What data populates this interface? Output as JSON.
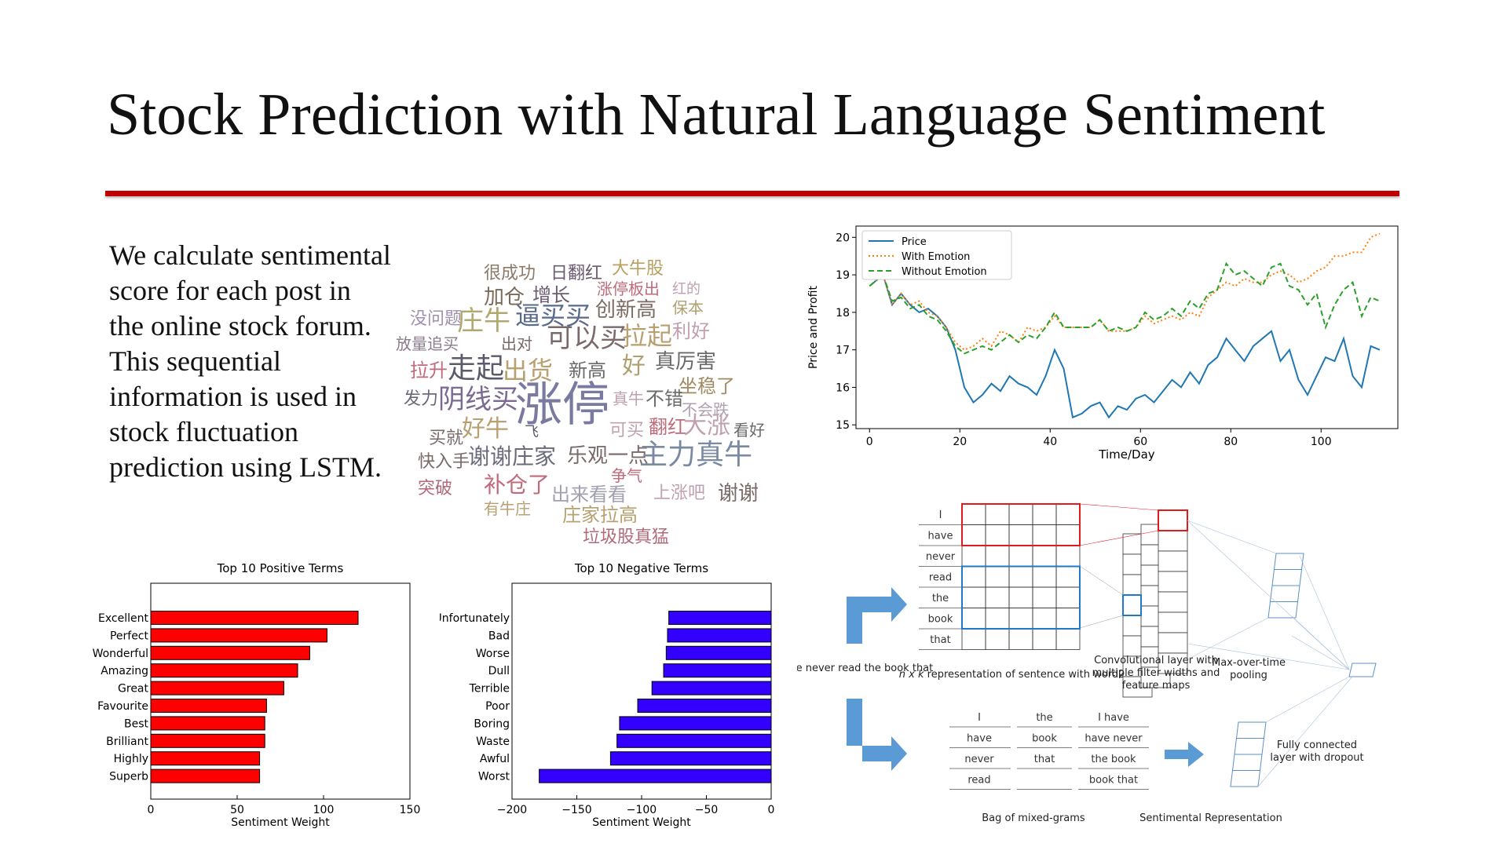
{
  "slide": {
    "title": "Stock Prediction with Natural Language Sentiment",
    "body": "We calculate sentimental score for each post in the online stock forum. This sequential information is used in stock fluctuation prediction using LSTM.",
    "accent_color": "#c00000"
  },
  "wordcloud": {
    "words": [
      "很成功",
      "日翻红",
      "大牛股",
      "加仓",
      "增长",
      "涨停板出",
      "红的",
      "没问题",
      "庄牛",
      "逼买买",
      "创新高",
      "保本",
      "放量追买",
      "出对",
      "可以买",
      "拉起",
      "利好",
      "拉升",
      "走起",
      "出货",
      "新高",
      "好",
      "真厉害",
      "坐稳了",
      "发力",
      "阴线买",
      "涨停",
      "真牛",
      "不错",
      "不会跌",
      "买就",
      "好牛",
      "飞",
      "可买",
      "翻红",
      "大涨",
      "看好",
      "快入手",
      "谢谢庄家",
      "乐观一点",
      "主力真牛",
      "突破",
      "补仓了",
      "争气",
      "出来看看",
      "上涨吧",
      "谢谢",
      "有牛庄",
      "庄家拉高",
      "垃圾股真猛"
    ]
  },
  "chart_data": [
    {
      "type": "line",
      "title": "",
      "xlabel": "Time/Day",
      "ylabel": "Price and Profit",
      "xlim": [
        -3,
        117
      ],
      "ylim": [
        14.9,
        20.3
      ],
      "xticks": [
        0,
        20,
        40,
        60,
        80,
        100
      ],
      "yticks": [
        15,
        16,
        17,
        18,
        19,
        20
      ],
      "legend": "top-left",
      "series": [
        {
          "name": "Price",
          "color": "#1f77b4",
          "style": "solid",
          "x": [
            0,
            3,
            5,
            7,
            9,
            11,
            13,
            15,
            17,
            19,
            21,
            23,
            25,
            27,
            29,
            31,
            33,
            35,
            37,
            39,
            41,
            43,
            45,
            47,
            49,
            51,
            53,
            55,
            57,
            59,
            61,
            63,
            65,
            67,
            69,
            71,
            73,
            75,
            77,
            79,
            81,
            83,
            85,
            87,
            89,
            91,
            93,
            95,
            97,
            99,
            101,
            103,
            105,
            107,
            109,
            111,
            113
          ],
          "y": [
            18.7,
            19.0,
            18.2,
            18.5,
            18.2,
            18.0,
            18.1,
            17.9,
            17.6,
            17.0,
            16.0,
            15.6,
            15.8,
            16.1,
            15.9,
            16.3,
            16.1,
            16.0,
            15.8,
            16.3,
            17.0,
            16.5,
            15.2,
            15.3,
            15.5,
            15.6,
            15.2,
            15.5,
            15.4,
            15.7,
            15.8,
            15.6,
            15.9,
            16.2,
            16.0,
            16.4,
            16.1,
            16.6,
            16.8,
            17.3,
            17.0,
            16.7,
            17.1,
            17.3,
            17.5,
            16.7,
            17.0,
            16.2,
            15.8,
            16.3,
            16.8,
            16.7,
            17.3,
            16.3,
            16.0,
            17.1,
            17.0
          ]
        },
        {
          "name": "With Emotion",
          "color": "#ff7f0e",
          "style": "dotted",
          "x": [
            0,
            3,
            5,
            7,
            9,
            11,
            13,
            15,
            17,
            19,
            21,
            23,
            25,
            27,
            29,
            31,
            33,
            35,
            37,
            39,
            41,
            43,
            45,
            47,
            49,
            51,
            53,
            55,
            57,
            59,
            61,
            63,
            65,
            67,
            69,
            71,
            73,
            75,
            77,
            79,
            81,
            83,
            85,
            87,
            89,
            91,
            93,
            95,
            97,
            99,
            101,
            103,
            105,
            107,
            109,
            111,
            113
          ],
          "y": [
            18.7,
            19.0,
            18.2,
            18.5,
            18.2,
            18.3,
            18.0,
            17.9,
            17.6,
            17.2,
            17.0,
            17.1,
            17.3,
            17.1,
            17.5,
            17.4,
            17.2,
            17.6,
            17.5,
            17.6,
            17.9,
            17.6,
            17.6,
            17.6,
            17.6,
            17.8,
            17.5,
            17.5,
            17.5,
            17.6,
            17.9,
            17.7,
            17.8,
            17.9,
            17.8,
            18.0,
            17.9,
            18.4,
            18.6,
            18.8,
            18.7,
            18.9,
            18.8,
            18.8,
            19.0,
            19.1,
            19.0,
            18.8,
            18.9,
            19.1,
            19.2,
            19.5,
            19.5,
            19.6,
            19.6,
            20.0,
            20.1
          ]
        },
        {
          "name": "Without Emotion",
          "color": "#2ca02c",
          "style": "dashed",
          "x": [
            0,
            3,
            5,
            7,
            9,
            11,
            13,
            15,
            17,
            19,
            21,
            23,
            25,
            27,
            29,
            31,
            33,
            35,
            37,
            39,
            41,
            43,
            45,
            47,
            49,
            51,
            53,
            55,
            57,
            59,
            61,
            63,
            65,
            67,
            69,
            71,
            73,
            75,
            77,
            79,
            81,
            83,
            85,
            87,
            89,
            91,
            93,
            95,
            97,
            99,
            101,
            103,
            105,
            107,
            109,
            111,
            113
          ],
          "y": [
            18.7,
            19.0,
            18.3,
            18.4,
            18.1,
            18.2,
            17.9,
            17.8,
            17.5,
            17.1,
            16.9,
            17.0,
            17.1,
            17.0,
            17.2,
            17.4,
            17.2,
            17.4,
            17.3,
            17.6,
            18.0,
            17.6,
            17.6,
            17.6,
            17.6,
            17.8,
            17.5,
            17.6,
            17.5,
            17.6,
            18.0,
            17.8,
            17.9,
            18.1,
            17.9,
            18.3,
            18.1,
            18.5,
            18.6,
            19.3,
            19.0,
            19.1,
            18.9,
            18.7,
            19.2,
            19.3,
            18.7,
            18.6,
            18.2,
            18.5,
            17.6,
            18.2,
            18.6,
            18.8,
            17.9,
            18.4,
            18.3
          ]
        }
      ]
    },
    {
      "type": "bar",
      "orientation": "horizontal",
      "title": "Top 10 Positive Terms",
      "xlabel": "Sentiment Weight",
      "xlim": [
        0,
        150
      ],
      "xticks": [
        0,
        50,
        100,
        150
      ],
      "color": "#ff0000",
      "categories": [
        "Excellent",
        "Perfect",
        "Wonderful",
        "Amazing",
        "Great",
        "Favourite",
        "Best",
        "Brilliant",
        "Highly",
        "Superb"
      ],
      "values": [
        120,
        102,
        92,
        85,
        77,
        67,
        66,
        66,
        63,
        63
      ]
    },
    {
      "type": "bar",
      "orientation": "horizontal",
      "title": "Top 10 Negative Terms",
      "xlabel": "Sentiment Weight",
      "xlim": [
        -200,
        0
      ],
      "xticks": [
        -200,
        -150,
        -100,
        -50,
        0
      ],
      "color": "#3300ff",
      "categories": [
        "Unfortunately",
        "Bad",
        "Worse",
        "Dull",
        "Terrible",
        "Poor",
        "Boring",
        "Waste",
        "Awful",
        "Worst"
      ],
      "values": [
        -79,
        -80,
        -81,
        -83,
        -92,
        -103,
        -117,
        -119,
        -124,
        -179
      ]
    }
  ],
  "diagram": {
    "sentence_tokens": [
      "I",
      "have",
      "never",
      "read",
      "the",
      "book",
      "that"
    ],
    "input_label": "I have never read the book that",
    "matrix_caption_pre": "n x k",
    "matrix_caption_post": " representation of sentence with word2vec",
    "conv_caption": "Convolutional layer with multiple filter widths and feature maps",
    "pool_caption": "Max-over-time pooling",
    "fc_caption": "Fully connected layer with dropout",
    "bag_col1": [
      "I",
      "have",
      "never",
      "read"
    ],
    "bag_col2": [
      "the",
      "book",
      "that"
    ],
    "bag_col3": [
      "I have",
      "have never",
      "the book",
      "book that"
    ],
    "bag_caption": "Bag of mixed-grams",
    "sent_caption": "Sentimental Representation",
    "arrow_color": "#5b9bd5",
    "highlight_red": "#e31a1c",
    "highlight_blue": "#1f78c8"
  }
}
